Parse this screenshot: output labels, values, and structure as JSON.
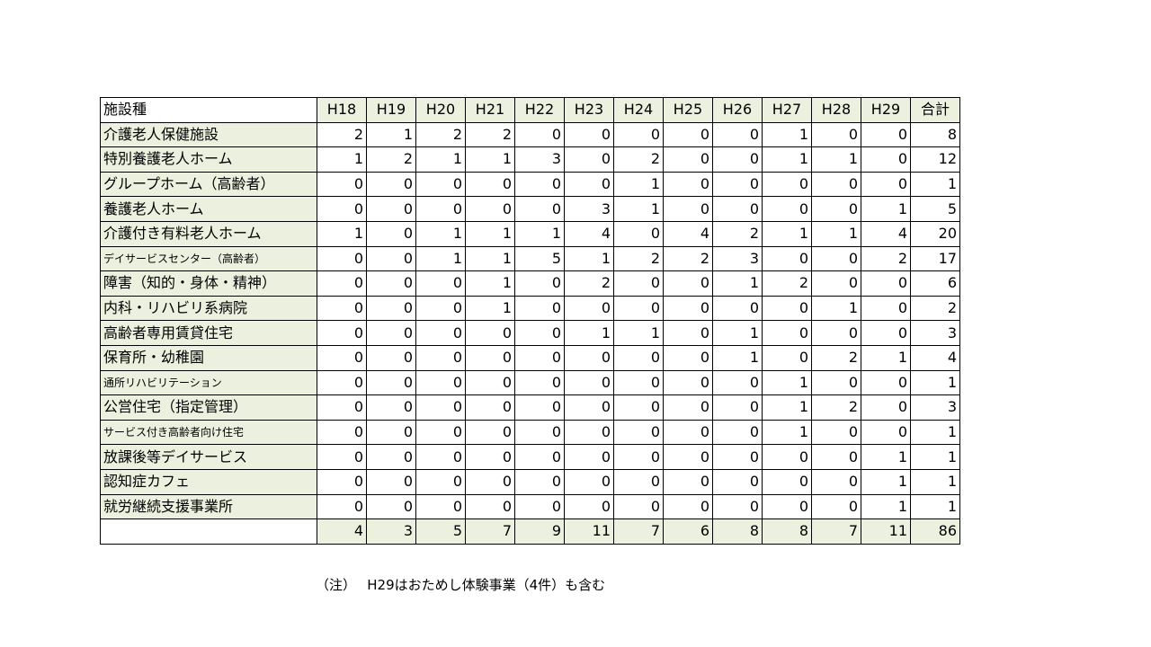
{
  "table": {
    "header_label": "施設種",
    "years": [
      "H18",
      "H19",
      "H20",
      "H21",
      "H22",
      "H23",
      "H24",
      "H25",
      "H26",
      "H27",
      "H28",
      "H29"
    ],
    "total_label": "合計",
    "rows": [
      {
        "name": "介護老人保健施設",
        "values": [
          "2",
          "1",
          "2",
          "2",
          "0",
          "0",
          "0",
          "0",
          "0",
          "1",
          "0",
          "0"
        ],
        "total": "8"
      },
      {
        "name": "特別養護老人ホーム",
        "values": [
          "1",
          "2",
          "1",
          "1",
          "3",
          "0",
          "2",
          "0",
          "0",
          "1",
          "1",
          "0"
        ],
        "total": "12"
      },
      {
        "name": "グループホーム（高齢者）",
        "values": [
          "0",
          "0",
          "0",
          "0",
          "0",
          "0",
          "1",
          "0",
          "0",
          "0",
          "0",
          "0"
        ],
        "total": "1"
      },
      {
        "name": "養護老人ホーム",
        "values": [
          "0",
          "0",
          "0",
          "0",
          "0",
          "3",
          "1",
          "0",
          "0",
          "0",
          "0",
          "1"
        ],
        "total": "5"
      },
      {
        "name": "介護付き有料老人ホーム",
        "values": [
          "1",
          "0",
          "1",
          "1",
          "1",
          "4",
          "0",
          "4",
          "2",
          "1",
          "1",
          "4"
        ],
        "total": "20"
      },
      {
        "name": "デイサービスセンター（高齢者）",
        "small": true,
        "values": [
          "0",
          "0",
          "1",
          "1",
          "5",
          "1",
          "2",
          "2",
          "3",
          "0",
          "0",
          "2"
        ],
        "total": "17"
      },
      {
        "name": "障害（知的・身体・精神）",
        "values": [
          "0",
          "0",
          "0",
          "1",
          "0",
          "2",
          "0",
          "0",
          "1",
          "2",
          "0",
          "0"
        ],
        "total": "6"
      },
      {
        "name": "内科・リハビリ系病院",
        "values": [
          "0",
          "0",
          "0",
          "1",
          "0",
          "0",
          "0",
          "0",
          "0",
          "0",
          "1",
          "0"
        ],
        "total": "2"
      },
      {
        "name": "高齢者専用賃貸住宅",
        "values": [
          "0",
          "0",
          "0",
          "0",
          "0",
          "1",
          "1",
          "0",
          "1",
          "0",
          "0",
          "0"
        ],
        "total": "3"
      },
      {
        "name": "保育所・幼稚園",
        "values": [
          "0",
          "0",
          "0",
          "0",
          "0",
          "0",
          "0",
          "0",
          "1",
          "0",
          "2",
          "1"
        ],
        "total": "4"
      },
      {
        "name": "通所リハビリテーション",
        "small": true,
        "values": [
          "0",
          "0",
          "0",
          "0",
          "0",
          "0",
          "0",
          "0",
          "0",
          "1",
          "0",
          "0"
        ],
        "total": "1"
      },
      {
        "name": "公営住宅（指定管理）",
        "values": [
          "0",
          "0",
          "0",
          "0",
          "0",
          "0",
          "0",
          "0",
          "0",
          "1",
          "2",
          "0"
        ],
        "total": "3"
      },
      {
        "name": "サービス付き高齢者向け住宅",
        "small": true,
        "values": [
          "0",
          "0",
          "0",
          "0",
          "0",
          "0",
          "0",
          "0",
          "0",
          "1",
          "0",
          "0"
        ],
        "total": "1"
      },
      {
        "name": "放課後等デイサービス",
        "values": [
          "0",
          "0",
          "0",
          "0",
          "0",
          "0",
          "0",
          "0",
          "0",
          "0",
          "0",
          "1"
        ],
        "total": "1"
      },
      {
        "name": "認知症カフェ",
        "values": [
          "0",
          "0",
          "0",
          "0",
          "0",
          "0",
          "0",
          "0",
          "0",
          "0",
          "0",
          "1"
        ],
        "total": "1"
      },
      {
        "name": "就労継続支援事業所",
        "values": [
          "0",
          "0",
          "0",
          "0",
          "0",
          "0",
          "0",
          "0",
          "0",
          "0",
          "0",
          "1"
        ],
        "total": "1"
      }
    ],
    "totals_label": "",
    "column_totals": [
      "4",
      "3",
      "5",
      "7",
      "9",
      "11",
      "7",
      "6",
      "8",
      "8",
      "7",
      "11"
    ],
    "grand_total": "86"
  },
  "note": "（注）　 H29はおためし体験事業（4件）も含む",
  "colors": {
    "label_fill": "#ebf1de",
    "border": "#000000"
  }
}
